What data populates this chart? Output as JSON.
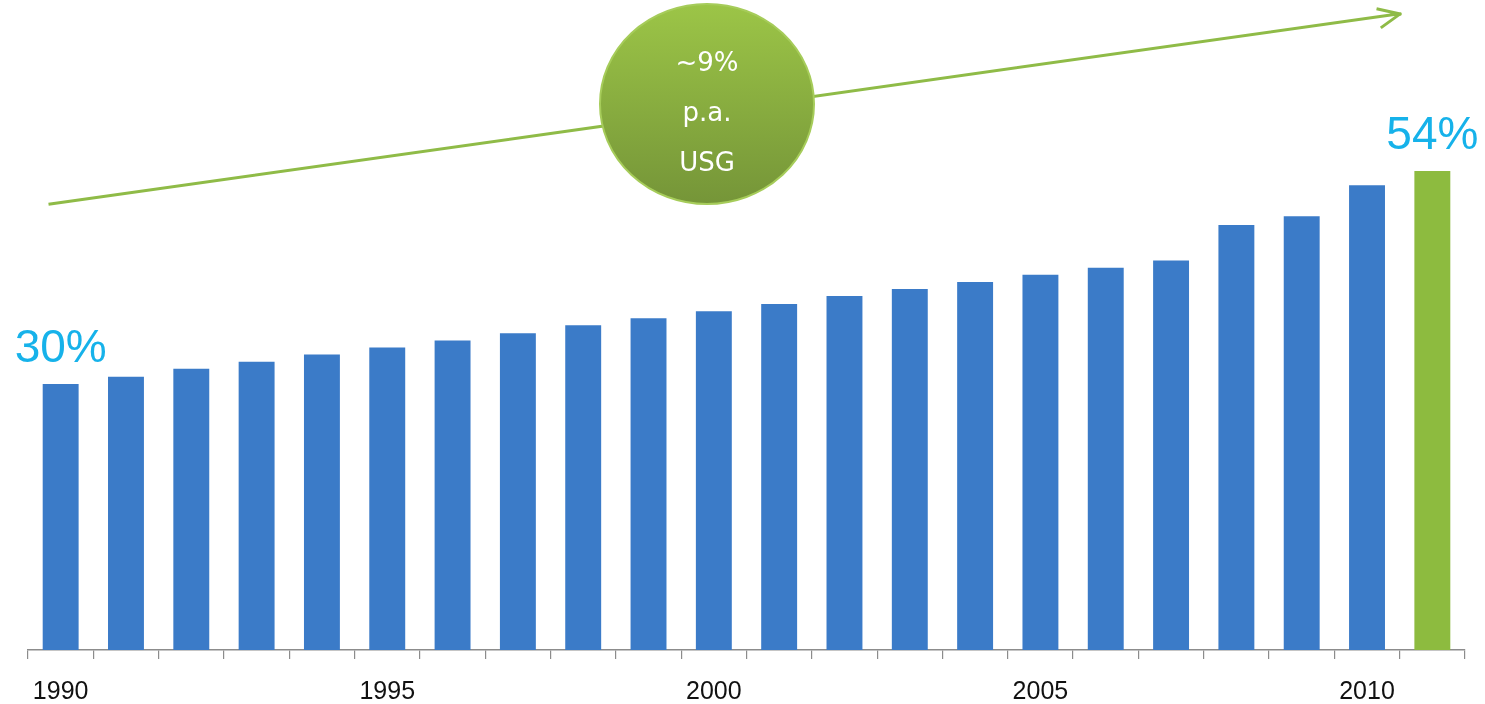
{
  "chart_data": {
    "type": "bar",
    "categories": [
      "1990",
      null,
      null,
      null,
      null,
      "1995",
      null,
      null,
      null,
      null,
      "2000",
      null,
      null,
      null,
      null,
      "2005",
      null,
      null,
      null,
      null,
      "2010",
      null
    ],
    "values": [
      30,
      30.8,
      31.7,
      32.5,
      33.3,
      34.1,
      34.9,
      35.7,
      36.6,
      37.4,
      38.2,
      39.0,
      39.9,
      40.7,
      41.5,
      42.3,
      43.1,
      43.9,
      47.9,
      48.9,
      52.4,
      54
    ],
    "colors": [
      "#3b7bc8",
      "#3b7bc8",
      "#3b7bc8",
      "#3b7bc8",
      "#3b7bc8",
      "#3b7bc8",
      "#3b7bc8",
      "#3b7bc8",
      "#3b7bc8",
      "#3b7bc8",
      "#3b7bc8",
      "#3b7bc8",
      "#3b7bc8",
      "#3b7bc8",
      "#3b7bc8",
      "#3b7bc8",
      "#3b7bc8",
      "#3b7bc8",
      "#3b7bc8",
      "#3b7bc8",
      "#3b7bc8",
      "#8dbb3f"
    ],
    "value_labels": [
      "30%",
      null,
      null,
      null,
      null,
      null,
      null,
      null,
      null,
      null,
      null,
      null,
      null,
      null,
      null,
      null,
      null,
      null,
      null,
      null,
      null,
      "54%"
    ],
    "annotations": [
      "~9%",
      "p.a.",
      "USG"
    ]
  }
}
